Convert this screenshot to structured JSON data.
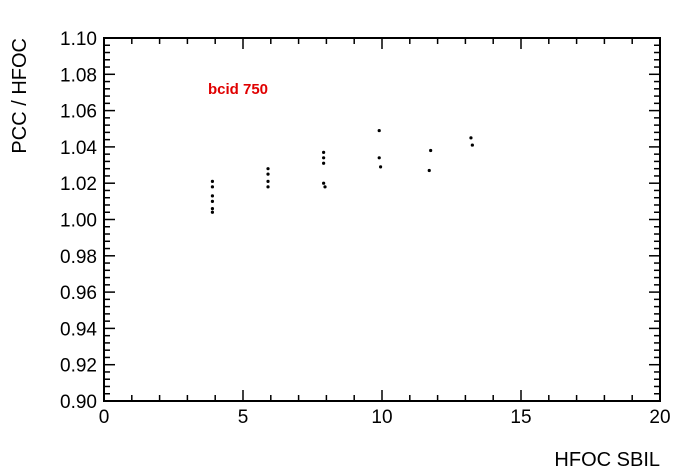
{
  "chart_data": {
    "type": "scatter",
    "title": "",
    "xlabel": "HFOC  SBIL",
    "ylabel": "PCC / HFOC",
    "xlim": [
      0,
      20
    ],
    "ylim": [
      0.9,
      1.1
    ],
    "x_ticks": [
      "0",
      "5",
      "10",
      "15",
      "20"
    ],
    "y_ticks": [
      "0.90",
      "0.92",
      "0.94",
      "0.96",
      "0.98",
      "1.00",
      "1.02",
      "1.04",
      "1.06",
      "1.08",
      "1.10"
    ],
    "grid": false,
    "annotation": {
      "text": "bcid 750",
      "color": "#e00000"
    },
    "marker_color": "#000000",
    "series": [
      {
        "x": [
          3.9,
          3.9,
          3.9,
          3.9,
          3.9,
          3.9,
          5.9,
          5.9,
          5.9,
          5.9,
          7.9,
          7.9,
          7.9,
          7.9,
          7.95,
          9.9,
          9.9,
          9.95,
          11.7,
          11.75,
          13.2,
          13.25
        ],
        "y": [
          1.021,
          1.018,
          1.013,
          1.01,
          1.006,
          1.004,
          1.028,
          1.025,
          1.021,
          1.018,
          1.037,
          1.034,
          1.031,
          1.02,
          1.018,
          1.049,
          1.034,
          1.029,
          1.027,
          1.038,
          1.045,
          1.041
        ]
      }
    ]
  }
}
